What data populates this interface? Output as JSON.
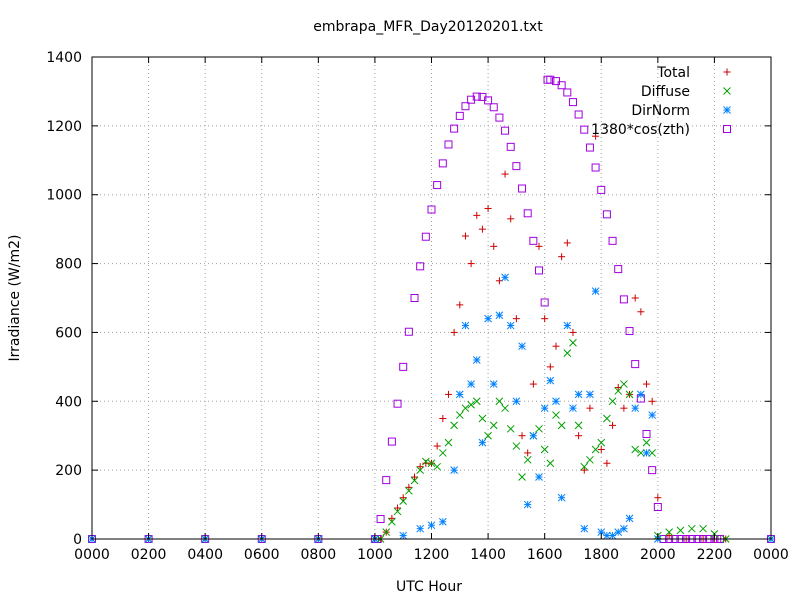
{
  "chart_data": {
    "type": "scatter",
    "title": "embrapa_MFR_Day20120201.txt",
    "xlabel": "UTC Hour",
    "ylabel": "Irradiance (W/m2)",
    "xlim": [
      0,
      24
    ],
    "ylim": [
      0,
      1400
    ],
    "grid": true,
    "legend_position": "top-right",
    "x_ticks": [
      {
        "value": 0,
        "label": "0000"
      },
      {
        "value": 2,
        "label": "0200"
      },
      {
        "value": 4,
        "label": "0400"
      },
      {
        "value": 6,
        "label": "0600"
      },
      {
        "value": 8,
        "label": "0800"
      },
      {
        "value": 10,
        "label": "1000"
      },
      {
        "value": 12,
        "label": "1200"
      },
      {
        "value": 14,
        "label": "1400"
      },
      {
        "value": 16,
        "label": "1600"
      },
      {
        "value": 18,
        "label": "1800"
      },
      {
        "value": 20,
        "label": "2000"
      },
      {
        "value": 22,
        "label": "2200"
      },
      {
        "value": 24,
        "label": "0000"
      }
    ],
    "y_ticks": [
      0,
      200,
      400,
      600,
      800,
      1000,
      1200,
      1400
    ],
    "series": [
      {
        "name": "Total",
        "color": "#cc0000",
        "marker": "plus",
        "x": [
          0,
          2,
          4,
          6,
          8,
          10,
          10.2,
          10.4,
          10.6,
          10.8,
          11.0,
          11.2,
          11.4,
          11.6,
          11.8,
          12.0,
          12.2,
          12.4,
          12.6,
          12.8,
          13.0,
          13.2,
          13.4,
          13.6,
          13.8,
          14.0,
          14.2,
          14.4,
          14.6,
          14.8,
          15.0,
          15.2,
          15.4,
          15.6,
          15.8,
          16.0,
          16.2,
          16.4,
          16.6,
          16.8,
          17.0,
          17.2,
          17.4,
          17.6,
          17.8,
          18.0,
          18.2,
          18.4,
          18.6,
          18.8,
          19.0,
          19.2,
          19.4,
          19.6,
          19.8,
          20.0,
          20.4,
          21.0,
          21.6,
          22.0,
          22.4,
          24
        ],
        "y": [
          0,
          0,
          0,
          0,
          0,
          0,
          0,
          20,
          60,
          90,
          120,
          150,
          180,
          210,
          220,
          220,
          270,
          350,
          420,
          600,
          680,
          880,
          800,
          940,
          900,
          960,
          850,
          750,
          1060,
          930,
          640,
          300,
          250,
          450,
          850,
          640,
          500,
          560,
          820,
          860,
          600,
          300,
          200,
          380,
          1170,
          260,
          220,
          330,
          440,
          380,
          420,
          700,
          660,
          450,
          400,
          120,
          10,
          0,
          0,
          0,
          0,
          0
        ]
      },
      {
        "name": "Diffuse",
        "color": "#00a000",
        "marker": "cross",
        "x": [
          0,
          2,
          4,
          6,
          8,
          10,
          10.2,
          10.4,
          10.6,
          10.8,
          11.0,
          11.2,
          11.4,
          11.6,
          11.8,
          12.0,
          12.2,
          12.4,
          12.6,
          12.8,
          13.0,
          13.2,
          13.4,
          13.6,
          13.8,
          14.0,
          14.2,
          14.4,
          14.6,
          14.8,
          15.0,
          15.2,
          15.4,
          15.6,
          15.8,
          16.0,
          16.2,
          16.4,
          16.6,
          16.8,
          17.0,
          17.2,
          17.4,
          17.6,
          17.8,
          18.0,
          18.2,
          18.4,
          18.6,
          18.8,
          19.0,
          19.2,
          19.4,
          19.6,
          19.8,
          20.0,
          20.4,
          20.8,
          21.2,
          21.6,
          22.0,
          22.4,
          24
        ],
        "y": [
          0,
          0,
          0,
          0,
          0,
          0,
          0,
          20,
          50,
          80,
          110,
          140,
          170,
          200,
          225,
          220,
          210,
          250,
          280,
          330,
          360,
          380,
          390,
          400,
          350,
          300,
          330,
          400,
          380,
          320,
          270,
          180,
          230,
          300,
          320,
          260,
          220,
          360,
          330,
          540,
          570,
          330,
          210,
          230,
          260,
          280,
          350,
          400,
          430,
          450,
          420,
          260,
          250,
          280,
          250,
          10,
          20,
          25,
          30,
          30,
          15,
          0,
          0
        ]
      },
      {
        "name": "DirNorm",
        "color": "#0080ff",
        "marker": "star",
        "x": [
          0,
          2,
          4,
          6,
          8,
          10,
          11.0,
          11.6,
          12.0,
          12.4,
          12.8,
          13.0,
          13.2,
          13.4,
          13.6,
          13.8,
          14.0,
          14.2,
          14.4,
          14.6,
          14.8,
          15.0,
          15.2,
          15.4,
          15.6,
          15.8,
          16.0,
          16.2,
          16.4,
          16.6,
          16.8,
          17.0,
          17.2,
          17.4,
          17.6,
          17.8,
          18.0,
          18.2,
          18.4,
          18.6,
          18.8,
          19.0,
          19.2,
          19.4,
          19.6,
          19.8,
          20.0,
          24
        ],
        "y": [
          0,
          0,
          0,
          0,
          0,
          0,
          10,
          30,
          40,
          50,
          200,
          420,
          620,
          450,
          520,
          280,
          640,
          450,
          650,
          760,
          620,
          400,
          560,
          100,
          300,
          180,
          380,
          460,
          400,
          120,
          620,
          380,
          420,
          30,
          420,
          720,
          20,
          10,
          10,
          20,
          30,
          60,
          380,
          420,
          250,
          360,
          0,
          0
        ]
      },
      {
        "name": "1380*cos(zth)",
        "color": "#a000e0",
        "marker": "square",
        "x": [
          0,
          2,
          4,
          6,
          8,
          10,
          10.1,
          10.2,
          10.4,
          10.6,
          10.8,
          11.0,
          11.2,
          11.4,
          11.6,
          11.8,
          12.0,
          12.2,
          12.4,
          12.6,
          12.8,
          13.0,
          13.2,
          13.4,
          13.6,
          13.8,
          14.0,
          14.2,
          14.4,
          14.6,
          14.8,
          15.0,
          15.2,
          15.4,
          15.6,
          15.8,
          16.0,
          16.1,
          16.2,
          16.4,
          16.6,
          16.8,
          17.0,
          17.2,
          17.4,
          17.6,
          17.8,
          18.0,
          18.2,
          18.4,
          18.6,
          18.8,
          19.0,
          19.2,
          19.4,
          19.6,
          19.8,
          20.0,
          20.2,
          20.4,
          20.6,
          20.8,
          21.0,
          21.2,
          21.4,
          21.6,
          21.8,
          22.0,
          22.1,
          22.2,
          24
        ],
        "y": [
          0,
          0,
          0,
          0,
          0,
          0,
          0,
          58,
          171,
          283,
          393,
          500,
          602,
          700,
          792,
          878,
          957,
          1028,
          1091,
          1146,
          1192,
          1229,
          1257,
          1276,
          1285,
          1284,
          1274,
          1254,
          1224,
          1186,
          1139,
          1083,
          1018,
          946,
          866,
          780,
          687,
          1334,
          1334,
          1330,
          1318,
          1297,
          1269,
          1233,
          1189,
          1137,
          1079,
          1014,
          943,
          866,
          784,
          696,
          604,
          508,
          408,
          305,
          200,
          93,
          0,
          0,
          0,
          0,
          0,
          0,
          0,
          0,
          0,
          0,
          0,
          0,
          0
        ]
      }
    ]
  }
}
